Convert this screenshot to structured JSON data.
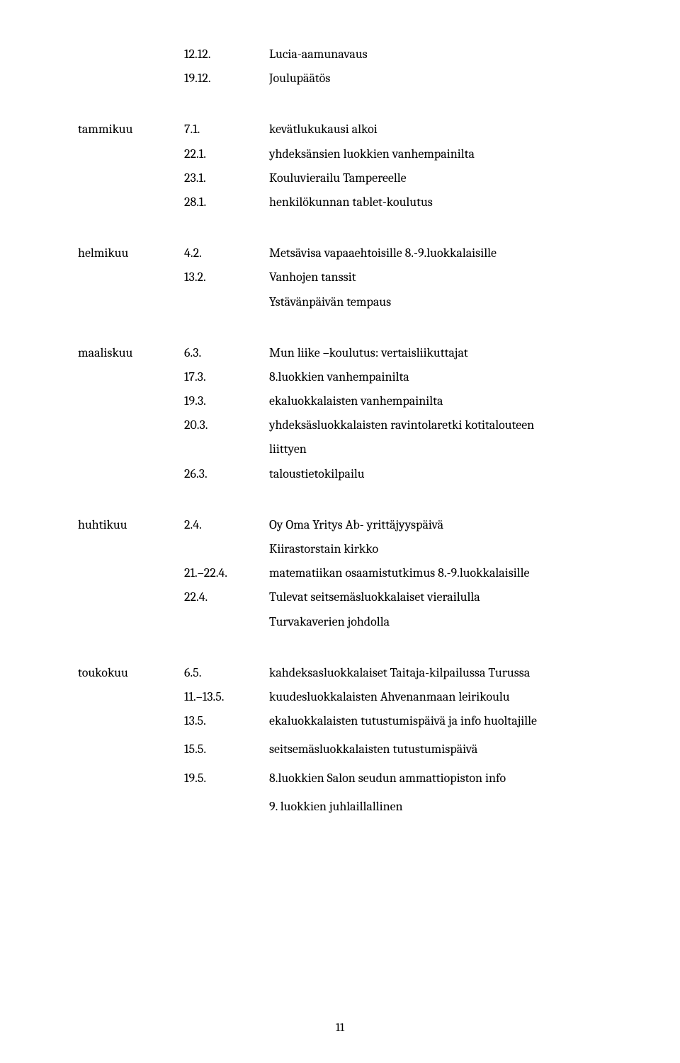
{
  "sections": {
    "dec": {
      "month": "",
      "rows": [
        {
          "date": "12.12.",
          "desc": "Lucia-aamunavaus"
        },
        {
          "date": "19.12.",
          "desc": "Joulupäätös"
        }
      ]
    },
    "tammikuu": {
      "month": "tammikuu",
      "rows": [
        {
          "date": "7.1.",
          "desc": "kevätlukukausi alkoi"
        },
        {
          "date": "22.1.",
          "desc": "yhdeksänsien luokkien vanhempainilta"
        },
        {
          "date": "23.1.",
          "desc": "Kouluvierailu Tampereelle"
        },
        {
          "date": "28.1.",
          "desc": "henkilökunnan tablet-koulutus"
        }
      ]
    },
    "helmikuu": {
      "month": "helmikuu",
      "rows": [
        {
          "date": "4.2.",
          "desc": "Metsävisa vapaaehtoisille 8.-9.luokkalaisille"
        },
        {
          "date": "13.2.",
          "desc": "Vanhojen tanssit"
        }
      ],
      "extra": "Ystävänpäivän tempaus"
    },
    "maaliskuu": {
      "month": "maaliskuu",
      "rows": [
        {
          "date": "6.3.",
          "desc": "Mun liike –koulutus: vertaisliikuttajat"
        },
        {
          "date": "17.3.",
          "desc": "8.luokkien vanhempainilta"
        },
        {
          "date": "19.3.",
          "desc": "ekaluokkalaisten vanhempainilta"
        },
        {
          "date": "20.3.",
          "desc": "yhdeksäsluokkalaisten ravintolaretki kotitalouteen"
        }
      ],
      "extra1": "liittyen",
      "rows2": [
        {
          "date": "26.3.",
          "desc": "taloustietokilpailu"
        }
      ]
    },
    "huhtikuu": {
      "month": "huhtikuu",
      "rows": [
        {
          "date": "2.4.",
          "desc": "Oy Oma Yritys Ab- yrittäjyyspäivä"
        }
      ],
      "extra1": "Kiirastorstain kirkko",
      "rows2": [
        {
          "date": "21.–22.4.",
          "desc": "matematiikan osaamistutkimus 8.-9.luokkalaisille"
        },
        {
          "date": "22.4.",
          "desc": "Tulevat seitsemäsluokkalaiset vierailulla"
        }
      ],
      "extra2": "Turvakaverien johdolla"
    },
    "toukokuu": {
      "month": "toukokuu",
      "rows": [
        {
          "date": "6.5.",
          "desc": "kahdeksasluokkalaiset Taitaja-kilpailussa Turussa"
        },
        {
          "date": "11.–13.5.",
          "desc": "kuudesluokkalaisten Ahvenanmaan leirikoulu"
        },
        {
          "date": "13.5.",
          "desc": "ekaluokkalaisten tutustumispäivä ja info huoltajille"
        }
      ],
      "rows2": [
        {
          "date": "15.5.",
          "desc": "seitsemäsluokkalaisten tutustumispäivä"
        }
      ],
      "rows3": [
        {
          "date": "19.5.",
          "desc": "8.luokkien Salon seudun ammattiopiston info"
        }
      ],
      "extra": "9. luokkien juhlaillallinen"
    }
  },
  "pageNumber": "11"
}
